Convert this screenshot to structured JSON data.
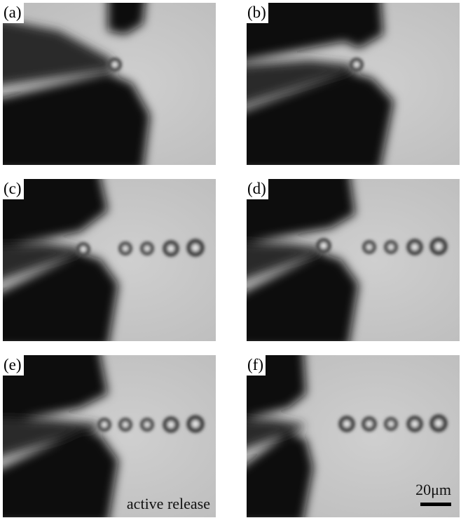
{
  "panels": [
    {
      "id": "a",
      "label": "(a)"
    },
    {
      "id": "b",
      "label": "(b)"
    },
    {
      "id": "c",
      "label": "(c)"
    },
    {
      "id": "d",
      "label": "(d)"
    },
    {
      "id": "e",
      "label": "(e)",
      "caption": "active release"
    },
    {
      "id": "f",
      "label": "(f)",
      "scale_bar": "20μm"
    }
  ],
  "colors": {
    "background": "#c8c8c8",
    "shadow": "#111111",
    "bead_rim": "#1a1a1a"
  }
}
